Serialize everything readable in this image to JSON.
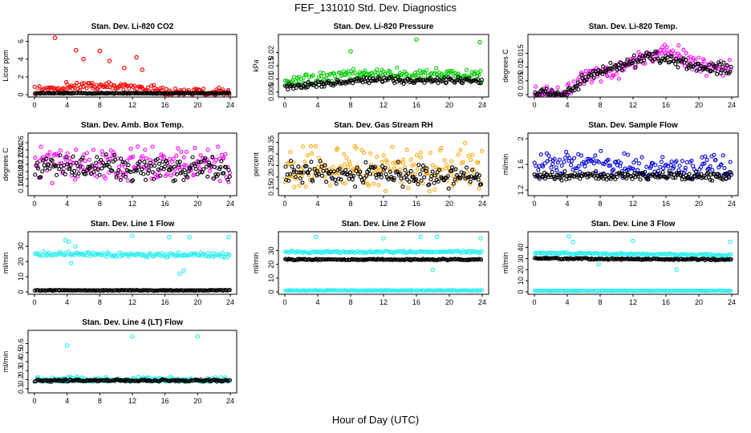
{
  "page": {
    "title": "FEF_131010  Std. Dev. Diagnostics",
    "xlabel": "Hour of Day (UTC)"
  },
  "chart_data": [
    {
      "type": "scatter",
      "title": "Stan. Dev. Li-820 CO2",
      "ylabel": "Licor ppm",
      "xlim": [
        0,
        24
      ],
      "ylim": [
        0,
        6.5
      ],
      "xticks": [
        0,
        4,
        8,
        12,
        16,
        20,
        24
      ],
      "yticks": [
        0,
        2,
        4,
        6
      ],
      "series": [
        {
          "name": "red",
          "color": "#ff0000",
          "cloud": {
            "x": [
              0,
              24
            ],
            "base": [
              [
                0,
                0.4
              ],
              [
                4,
                0.9
              ],
              [
                8,
                1.0
              ],
              [
                12,
                0.9
              ],
              [
                14,
                0.6
              ],
              [
                16,
                0.3
              ],
              [
                24,
                0.3
              ]
            ],
            "spread": 0.6,
            "outliers": [
              [
                2.5,
                6.4
              ],
              [
                5.1,
                5.0
              ],
              [
                6.0,
                4.0
              ],
              [
                8.0,
                4.9
              ],
              [
                9.2,
                3.8
              ],
              [
                11.0,
                3.0
              ],
              [
                12.5,
                4.2
              ],
              [
                13.2,
                2.8
              ]
            ]
          }
        },
        {
          "name": "black",
          "color": "#000000",
          "cloud": {
            "x": [
              0,
              24
            ],
            "base": [
              [
                0,
                0.15
              ],
              [
                24,
                0.15
              ]
            ],
            "spread": 0.08
          }
        }
      ]
    },
    {
      "type": "scatter",
      "title": "Stan. Dev. Li-820 Pressure",
      "ylabel": "kPa",
      "xlim": [
        0,
        24
      ],
      "ylim": [
        0.004,
        0.026
      ],
      "xticks": [
        0,
        4,
        8,
        12,
        16,
        20,
        24
      ],
      "yticks": [
        0.005,
        0.01,
        0.015,
        0.02
      ],
      "series": [
        {
          "name": "green",
          "color": "#00cc00",
          "cloud": {
            "x": [
              0,
              24
            ],
            "base": [
              [
                0,
                0.0085
              ],
              [
                4,
                0.01
              ],
              [
                8,
                0.0115
              ],
              [
                12,
                0.012
              ],
              [
                16,
                0.012
              ],
              [
                20,
                0.0115
              ],
              [
                24,
                0.011
              ]
            ],
            "spread": 0.0025,
            "outliers": [
              [
                8.0,
                0.0205
              ],
              [
                16.0,
                0.025
              ],
              [
                23.7,
                0.024
              ]
            ]
          }
        },
        {
          "name": "black",
          "color": "#000000",
          "cloud": {
            "x": [
              0,
              24
            ],
            "base": [
              [
                0,
                0.007
              ],
              [
                4,
                0.008
              ],
              [
                8,
                0.009
              ],
              [
                12,
                0.0095
              ],
              [
                16,
                0.0095
              ],
              [
                20,
                0.0095
              ],
              [
                24,
                0.0095
              ]
            ],
            "spread": 0.0015
          }
        }
      ]
    },
    {
      "type": "scatter",
      "title": "Stan. Dev. Li-820 Temp.",
      "ylabel": "degrees C",
      "xlim": [
        0,
        24
      ],
      "ylim": [
        0,
        0.021
      ],
      "xticks": [
        0,
        4,
        8,
        12,
        16,
        20,
        24
      ],
      "yticks": [
        0,
        0.005,
        0.01,
        0.015
      ],
      "series": [
        {
          "name": "magenta",
          "color": "#ff00ff",
          "cloud": {
            "x": [
              0,
              24
            ],
            "base": [
              [
                0,
                0
              ],
              [
                3,
                0
              ],
              [
                4,
                0.001
              ],
              [
                6,
                0.006
              ],
              [
                8,
                0.008
              ],
              [
                10,
                0.009
              ],
              [
                12,
                0.012
              ],
              [
                14,
                0.014
              ],
              [
                16,
                0.016
              ],
              [
                18,
                0.014
              ],
              [
                20,
                0.011
              ],
              [
                22,
                0.01
              ],
              [
                24,
                0.01
              ]
            ],
            "spread": 0.004
          }
        },
        {
          "name": "black",
          "color": "#000000",
          "cloud": {
            "x": [
              0,
              24
            ],
            "base": [
              [
                0,
                0
              ],
              [
                4,
                0
              ],
              [
                6,
                0.006
              ],
              [
                10,
                0.01
              ],
              [
                14,
                0.013
              ],
              [
                16,
                0.014
              ],
              [
                20,
                0.01
              ],
              [
                24,
                0.009
              ]
            ],
            "spread": 0.003
          }
        }
      ]
    },
    {
      "type": "scatter",
      "title": "Stan. Dev. Amb. Box Temp.",
      "ylabel": "degrees C",
      "xlim": [
        0,
        24
      ],
      "ylim": [
        0.12,
        0.28
      ],
      "xticks": [
        0,
        4,
        8,
        12,
        16,
        20,
        24
      ],
      "yticks": [
        0.14,
        0.16,
        0.18,
        0.2,
        0.22,
        0.24,
        0.26
      ],
      "series": [
        {
          "name": "magenta",
          "color": "#ff00ff",
          "cloud": {
            "x": [
              0,
              24
            ],
            "base": [
              [
                0,
                0.2
              ],
              [
                24,
                0.2
              ]
            ],
            "spread": 0.055
          }
        },
        {
          "name": "black",
          "color": "#000000",
          "cloud": {
            "x": [
              0,
              24
            ],
            "base": [
              [
                0,
                0.19
              ],
              [
                24,
                0.19
              ]
            ],
            "spread": 0.04
          }
        }
      ]
    },
    {
      "type": "scatter",
      "title": "Stan. Dev. Gas Stream RH",
      "ylabel": "percent",
      "xlim": [
        0,
        24
      ],
      "ylim": [
        0.13,
        0.38
      ],
      "xticks": [
        0,
        4,
        8,
        12,
        16,
        20,
        24
      ],
      "yticks": [
        0.15,
        0.2,
        0.25,
        0.3,
        0.35
      ],
      "series": [
        {
          "name": "orange",
          "color": "#ffa500",
          "cloud": {
            "x": [
              0,
              24
            ],
            "base": [
              [
                0,
                0.24
              ],
              [
                24,
                0.24
              ]
            ],
            "spread": 0.11
          }
        },
        {
          "name": "black",
          "color": "#000000",
          "cloud": {
            "x": [
              0,
              24
            ],
            "base": [
              [
                0,
                0.22
              ],
              [
                24,
                0.2
              ]
            ],
            "spread": 0.06
          }
        }
      ]
    },
    {
      "type": "scatter",
      "title": "Stan. Dev. Sample Flow",
      "ylabel": "ml/min",
      "xlim": [
        0,
        24
      ],
      "ylim": [
        1.15,
        2.05
      ],
      "xticks": [
        0,
        4,
        8,
        12,
        16,
        20,
        24
      ],
      "yticks": [
        1.2,
        1.6,
        2.0
      ],
      "series": [
        {
          "name": "blue",
          "color": "#0000dd",
          "cloud": {
            "x": [
              0,
              24
            ],
            "base": [
              [
                0,
                1.6
              ],
              [
                4,
                1.65
              ],
              [
                8,
                1.6
              ],
              [
                12,
                1.55
              ],
              [
                16,
                1.55
              ],
              [
                20,
                1.55
              ],
              [
                24,
                1.55
              ]
            ],
            "spread": 0.22
          }
        },
        {
          "name": "black",
          "color": "#000000",
          "cloud": {
            "x": [
              0,
              24
            ],
            "base": [
              [
                0,
                1.42
              ],
              [
                24,
                1.42
              ]
            ],
            "spread": 0.08
          }
        }
      ]
    },
    {
      "type": "scatter",
      "title": "Stan. Dev. Line 1 Flow",
      "ylabel": "ml/min",
      "xlim": [
        0,
        24
      ],
      "ylim": [
        0,
        38
      ],
      "xticks": [
        0,
        4,
        8,
        12,
        16,
        20,
        24
      ],
      "yticks": [
        0,
        10,
        20,
        30
      ],
      "series": [
        {
          "name": "cyan",
          "color": "#33eeee",
          "cloud": {
            "x": [
              0,
              24
            ],
            "base": [
              [
                0,
                25
              ],
              [
                24,
                24
              ]
            ],
            "spread": 2.0,
            "outliers": [
              [
                3.8,
                34
              ],
              [
                4.2,
                33
              ],
              [
                5.0,
                30
              ],
              [
                4.5,
                19
              ],
              [
                12,
                37
              ],
              [
                16.5,
                36
              ],
              [
                17.8,
                12
              ],
              [
                18.3,
                14
              ],
              [
                19,
                36
              ],
              [
                23.8,
                36
              ]
            ]
          }
        },
        {
          "name": "black",
          "color": "#000000",
          "cloud": {
            "x": [
              0,
              24
            ],
            "base": [
              [
                0,
                1
              ],
              [
                24,
                1
              ]
            ],
            "spread": 0.3
          }
        }
      ]
    },
    {
      "type": "scatter",
      "title": "Stan. Dev. Line 2 Flow",
      "ylabel": "ml/min",
      "xlim": [
        0,
        24
      ],
      "ylim": [
        0,
        42
      ],
      "xticks": [
        0,
        4,
        8,
        12,
        16,
        20,
        24
      ],
      "yticks": [
        0,
        10,
        20,
        30
      ],
      "series": [
        {
          "name": "cyan",
          "color": "#33eeee",
          "cloud": {
            "x": [
              0,
              24
            ],
            "base": [
              [
                0,
                29
              ],
              [
                24,
                29
              ]
            ],
            "spread": 1.0,
            "outliers": [
              [
                3.8,
                40
              ],
              [
                12,
                39
              ],
              [
                16.5,
                40
              ],
              [
                18.0,
                16
              ],
              [
                18.5,
                40
              ],
              [
                23.8,
                39
              ]
            ]
          }
        },
        {
          "name": "black",
          "color": "#000000",
          "cloud": {
            "x": [
              0,
              24
            ],
            "base": [
              [
                0,
                23.5
              ],
              [
                24,
                23.5
              ]
            ],
            "spread": 0.6
          }
        },
        {
          "name": "cyan-low",
          "color": "#33eeee",
          "cloud": {
            "x": [
              0,
              24
            ],
            "base": [
              [
                0,
                1
              ],
              [
                24,
                1
              ]
            ],
            "spread": 0.3
          }
        }
      ]
    },
    {
      "type": "scatter",
      "title": "Stan. Dev. Line 3 Flow",
      "ylabel": "ml/min",
      "xlim": [
        0,
        24
      ],
      "ylim": [
        0,
        52
      ],
      "xticks": [
        0,
        4,
        8,
        12,
        16,
        20,
        24
      ],
      "yticks": [
        0,
        10,
        20,
        30,
        40
      ],
      "series": [
        {
          "name": "cyan",
          "color": "#33eeee",
          "cloud": {
            "x": [
              0,
              24
            ],
            "base": [
              [
                0,
                35
              ],
              [
                24,
                33
              ]
            ],
            "spread": 1.2,
            "outliers": [
              [
                4.2,
                50
              ],
              [
                4.7,
                45
              ],
              [
                7.8,
                25
              ],
              [
                12,
                46
              ],
              [
                17.3,
                20
              ],
              [
                23.8,
                45
              ]
            ]
          }
        },
        {
          "name": "black",
          "color": "#000000",
          "cloud": {
            "x": [
              0,
              24
            ],
            "base": [
              [
                0,
                30
              ],
              [
                24,
                29
              ]
            ],
            "spread": 0.8
          }
        },
        {
          "name": "cyan-low",
          "color": "#33eeee",
          "cloud": {
            "x": [
              0,
              24
            ],
            "base": [
              [
                0,
                1
              ],
              [
                24,
                1
              ]
            ],
            "spread": 0.3
          }
        }
      ]
    },
    {
      "type": "scatter",
      "title": "Stan. Dev. Line 4 (LT) Flow",
      "ylabel": "ml/min",
      "xlim": [
        0,
        24
      ],
      "ylim": [
        0.08,
        0.72
      ],
      "xticks": [
        0,
        4,
        8,
        12,
        16,
        20,
        24
      ],
      "yticks": [
        0.1,
        0.2,
        0.3,
        0.4,
        0.5,
        0.6
      ],
      "series": [
        {
          "name": "cyan",
          "color": "#33eeee",
          "cloud": {
            "x": [
              0,
              24
            ],
            "base": [
              [
                0,
                0.2
              ],
              [
                24,
                0.2
              ]
            ],
            "spread": 0.035,
            "outliers": [
              [
                4.0,
                0.58
              ],
              [
                12.0,
                0.68
              ],
              [
                20.0,
                0.68
              ]
            ]
          }
        },
        {
          "name": "black",
          "color": "#000000",
          "cloud": {
            "x": [
              0,
              24
            ],
            "base": [
              [
                0,
                0.19
              ],
              [
                24,
                0.19
              ]
            ],
            "spread": 0.015
          }
        }
      ]
    }
  ]
}
